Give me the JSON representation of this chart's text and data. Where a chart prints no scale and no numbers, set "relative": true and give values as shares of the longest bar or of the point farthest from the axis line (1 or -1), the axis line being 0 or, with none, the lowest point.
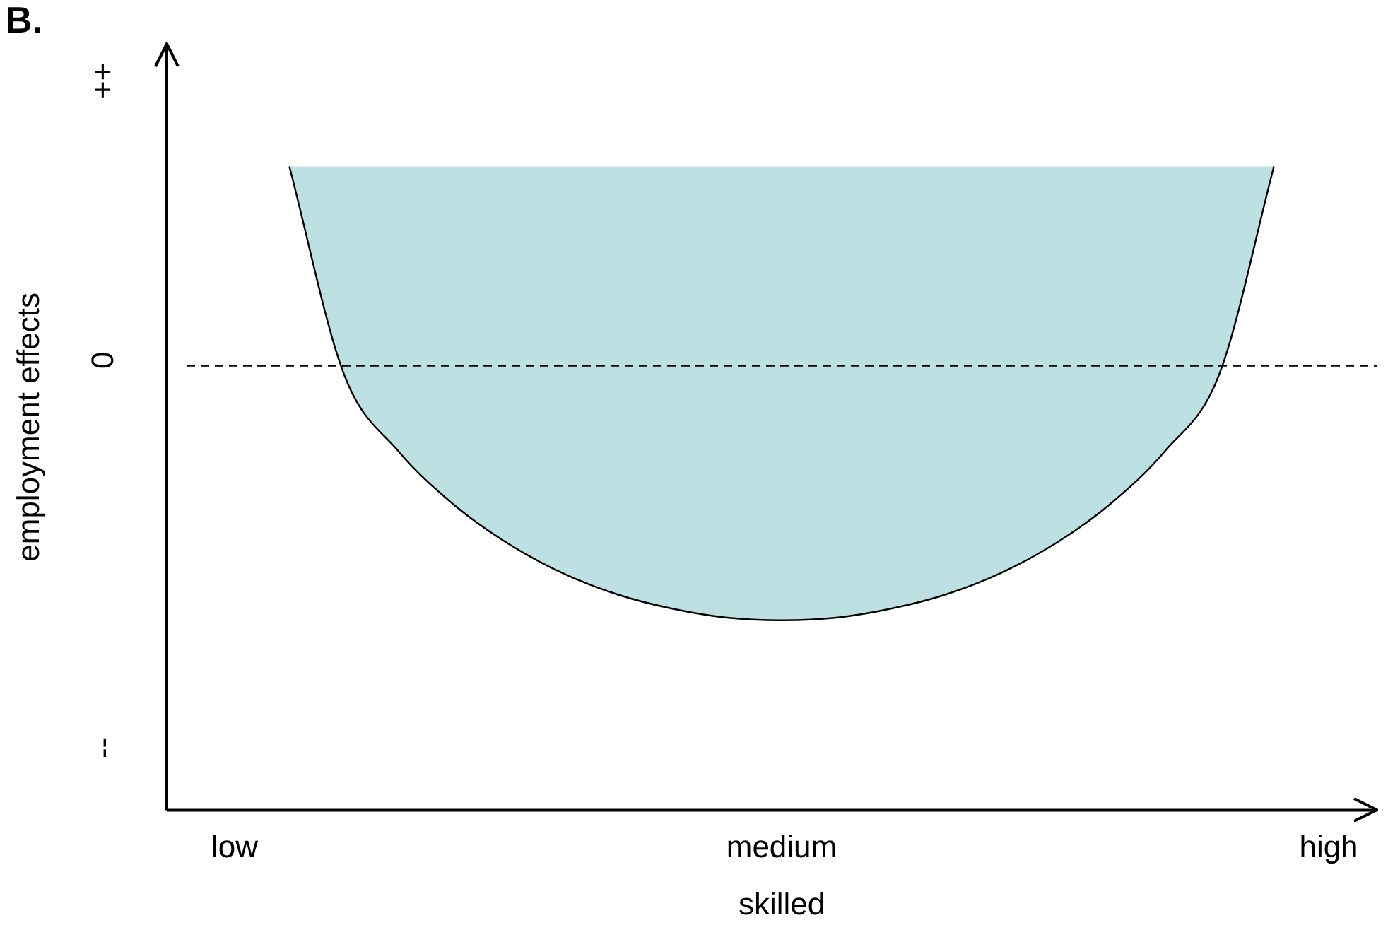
{
  "chart_data": {
    "type": "area",
    "title": "B.",
    "xlabel": "skilled",
    "ylabel": "employment effects",
    "relative": true,
    "categories": [
      "low",
      null,
      null,
      null,
      null,
      null,
      null,
      null,
      null,
      null,
      "medium",
      null,
      null,
      null,
      null,
      null,
      null,
      null,
      null,
      null,
      "high"
    ],
    "series": [
      {
        "color": "#bde0e3",
        "values": [
          null,
          1,
          0.677,
          0.557,
          0.475,
          0.414,
          0.368,
          0.335,
          0.313,
          0.299,
          0.295,
          0.299,
          0.313,
          0.335,
          0.368,
          0.414,
          0.475,
          0.557,
          0.677,
          1,
          null
        ]
      }
    ],
    "ref_lines": [
      {
        "axis": "y",
        "value": 0.69,
        "color": "#000000",
        "line_style": "dashed"
      }
    ],
    "annotations": [
      "++",
      "0",
      "--"
    ],
    "grid": false,
    "legend": false
  }
}
